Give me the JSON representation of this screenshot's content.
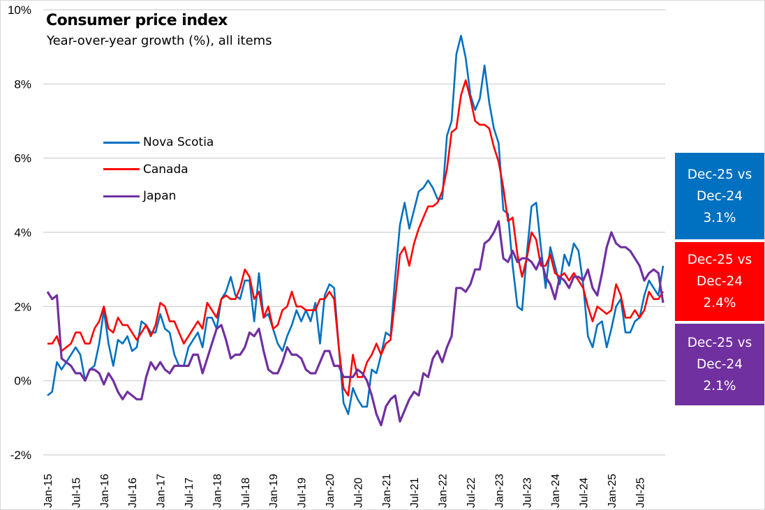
{
  "chart_data": {
    "type": "line",
    "title": "Consumer price index",
    "subtitle": "Year-over-year growth (%), all items",
    "xlabel": "",
    "ylabel": "",
    "ylim": [
      -2,
      10
    ],
    "y_ticks": [
      "-2%",
      "0%",
      "2%",
      "4%",
      "6%",
      "8%",
      "10%"
    ],
    "y_tick_values": [
      -2,
      0,
      2,
      4,
      6,
      8,
      10
    ],
    "grid": "horizontal",
    "legend_position": "upper-left",
    "x_start": "Jan-15",
    "x_end": "Dec-25",
    "x_tick_labels": [
      "Jan-15",
      "Jul-15",
      "Jan-16",
      "Jul-16",
      "Jan-17",
      "Jul-17",
      "Jan-18",
      "Jul-18",
      "Jan-19",
      "Jul-19",
      "Jan-20",
      "Jul-20",
      "Jan-21",
      "Jul-21",
      "Jan-22",
      "Jul-22",
      "Jan-23",
      "Jul-23",
      "Jan-24",
      "Jul-24",
      "Jan-25",
      "Jul-25"
    ],
    "series": [
      {
        "name": "Nova Scotia",
        "color": "#0070c0",
        "values": [
          -0.4,
          -0.3,
          0.5,
          0.3,
          0.5,
          0.7,
          0.9,
          0.7,
          0.0,
          0.3,
          0.4,
          1.0,
          1.9,
          1.0,
          0.4,
          1.1,
          1.0,
          1.2,
          0.8,
          0.9,
          1.6,
          1.5,
          1.3,
          1.3,
          1.8,
          1.4,
          1.3,
          0.7,
          0.4,
          0.4,
          0.9,
          1.1,
          1.3,
          0.9,
          1.7,
          1.7,
          1.4,
          2.2,
          2.4,
          2.8,
          2.3,
          2.2,
          2.7,
          2.7,
          1.6,
          2.9,
          1.7,
          1.8,
          1.4,
          1.0,
          0.8,
          1.2,
          1.5,
          1.9,
          1.6,
          1.9,
          1.6,
          2.1,
          1.0,
          2.3,
          2.6,
          2.5,
          0.9,
          -0.6,
          -0.9,
          -0.2,
          -0.5,
          -0.7,
          -0.7,
          0.3,
          0.2,
          0.7,
          1.3,
          1.2,
          2.8,
          4.2,
          4.8,
          4.1,
          4.6,
          5.1,
          5.2,
          5.4,
          5.2,
          4.9,
          4.9,
          6.6,
          7.0,
          8.8,
          9.3,
          8.7,
          7.7,
          7.3,
          7.6,
          8.5,
          7.5,
          6.8,
          6.4,
          4.6,
          4.5,
          3.1,
          2.0,
          1.9,
          3.4,
          4.7,
          4.8,
          3.6,
          2.5,
          3.6,
          3.1,
          2.6,
          3.4,
          3.1,
          3.7,
          3.5,
          2.6,
          1.2,
          0.9,
          1.5,
          1.6,
          0.9,
          1.4,
          2.0,
          2.2,
          1.3,
          1.3,
          1.6,
          1.7,
          2.3,
          2.7,
          2.5,
          2.3,
          3.1
        ]
      },
      {
        "name": "Canada",
        "color": "#ff0000",
        "values": [
          1.0,
          1.0,
          1.2,
          0.8,
          0.9,
          1.0,
          1.3,
          1.3,
          1.0,
          1.0,
          1.4,
          1.6,
          2.0,
          1.4,
          1.3,
          1.7,
          1.5,
          1.5,
          1.3,
          1.1,
          1.3,
          1.5,
          1.2,
          1.5,
          2.1,
          2.0,
          1.6,
          1.6,
          1.3,
          1.0,
          1.2,
          1.4,
          1.6,
          1.4,
          2.1,
          1.9,
          1.7,
          2.2,
          2.3,
          2.2,
          2.2,
          2.5,
          3.0,
          2.8,
          2.2,
          2.4,
          1.7,
          2.0,
          1.4,
          1.5,
          1.9,
          2.0,
          2.4,
          2.0,
          2.0,
          1.9,
          1.9,
          1.9,
          2.2,
          2.2,
          2.4,
          2.2,
          0.9,
          -0.2,
          -0.4,
          0.7,
          0.1,
          0.1,
          0.5,
          0.7,
          1.0,
          0.7,
          1.0,
          1.1,
          2.2,
          3.4,
          3.6,
          3.1,
          3.7,
          4.1,
          4.4,
          4.7,
          4.7,
          4.8,
          5.1,
          5.7,
          6.7,
          6.8,
          7.7,
          8.1,
          7.6,
          7.0,
          6.9,
          6.9,
          6.8,
          6.3,
          5.9,
          5.2,
          4.3,
          4.4,
          3.4,
          2.8,
          3.3,
          4.0,
          3.8,
          3.1,
          3.1,
          3.4,
          2.9,
          2.8,
          2.9,
          2.7,
          2.9,
          2.7,
          2.5,
          2.0,
          1.6,
          2.0,
          1.9,
          1.8,
          1.9,
          2.6,
          2.3,
          1.7,
          1.7,
          1.9,
          1.7,
          1.9,
          2.4,
          2.2,
          2.2,
          2.4
        ]
      },
      {
        "name": "Japan",
        "color": "#7030a0",
        "values": [
          2.4,
          2.2,
          2.3,
          0.6,
          0.5,
          0.4,
          0.2,
          0.2,
          0.0,
          0.3,
          0.3,
          0.2,
          -0.1,
          0.2,
          0.0,
          -0.3,
          -0.5,
          -0.3,
          -0.4,
          -0.5,
          -0.5,
          0.1,
          0.5,
          0.3,
          0.5,
          0.3,
          0.2,
          0.4,
          0.4,
          0.4,
          0.4,
          0.7,
          0.7,
          0.2,
          0.6,
          1.0,
          1.4,
          1.5,
          1.1,
          0.6,
          0.7,
          0.7,
          0.9,
          1.3,
          1.2,
          1.4,
          0.8,
          0.3,
          0.2,
          0.2,
          0.5,
          0.9,
          0.7,
          0.7,
          0.6,
          0.3,
          0.2,
          0.2,
          0.5,
          0.8,
          0.8,
          0.4,
          0.4,
          0.1,
          0.1,
          0.1,
          0.3,
          0.2,
          0.0,
          -0.4,
          -0.9,
          -1.2,
          -0.7,
          -0.5,
          -0.4,
          -1.1,
          -0.8,
          -0.5,
          -0.3,
          -0.4,
          0.2,
          0.1,
          0.6,
          0.8,
          0.5,
          0.9,
          1.2,
          2.5,
          2.5,
          2.4,
          2.6,
          3.0,
          3.0,
          3.7,
          3.8,
          4.0,
          4.3,
          3.3,
          3.2,
          3.5,
          3.2,
          3.3,
          3.3,
          3.2,
          3.0,
          3.3,
          2.8,
          2.6,
          2.2,
          2.8,
          2.7,
          2.5,
          2.8,
          2.8,
          2.7,
          3.0,
          2.5,
          2.3,
          2.9,
          3.6,
          4.0,
          3.7,
          3.6,
          3.6,
          3.5,
          3.3,
          3.1,
          2.7,
          2.9,
          3.0,
          2.9,
          2.1
        ]
      }
    ],
    "annotations": [
      {
        "series": "Nova Scotia",
        "line1": "Dec-25 vs",
        "line2": "Dec-24",
        "value": "3.1%",
        "color": "#0070c0"
      },
      {
        "series": "Canada",
        "line1": "Dec-25 vs",
        "line2": "Dec-24",
        "value": "2.4%",
        "color": "#ff0000"
      },
      {
        "series": "Japan",
        "line1": "Dec-25 vs",
        "line2": "Dec-24",
        "value": "2.1%",
        "color": "#7030a0"
      }
    ]
  }
}
